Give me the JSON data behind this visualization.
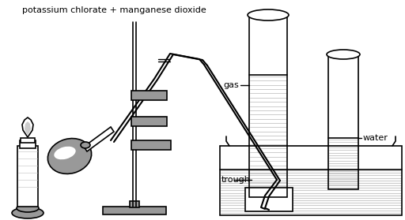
{
  "title": "potassium chlorate + manganese dioxide",
  "label_gas": "gas",
  "label_water": "water",
  "label_trough": "trough",
  "bg_color": "#ffffff",
  "black": "#000000",
  "gray": "#999999",
  "light_gray": "#cccccc",
  "water_hatch": "#c8ccd0",
  "lw": 1.2
}
